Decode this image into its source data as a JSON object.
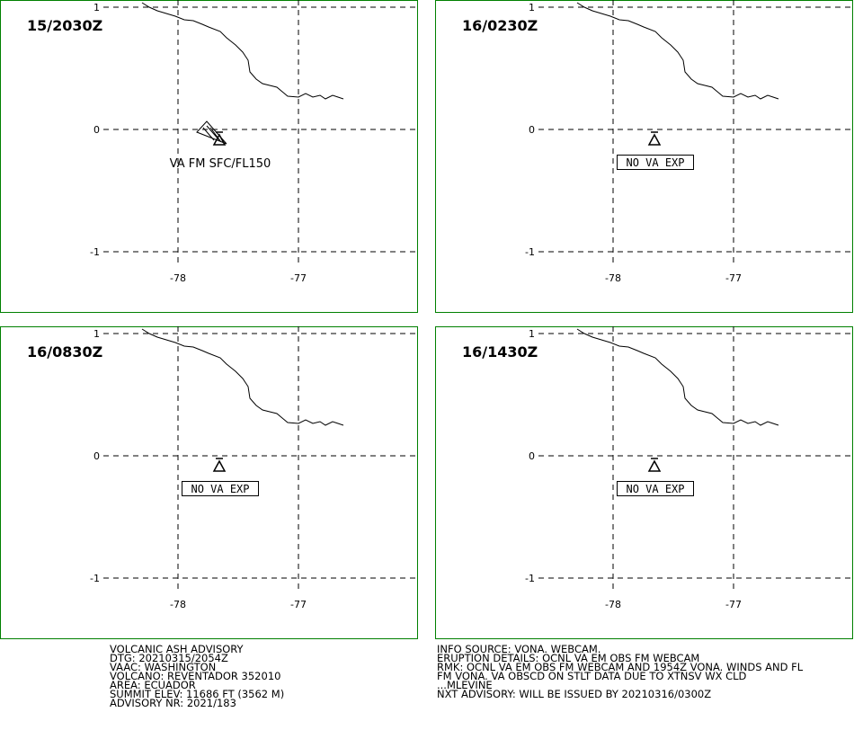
{
  "panels": [
    {
      "title": "15/2030Z",
      "lat_labels": [
        1,
        0,
        -1
      ],
      "lon_labels": [
        -78,
        -77
      ],
      "annotation": "VA FM SFC/FL150",
      "boxed": false
    },
    {
      "title": "16/0230Z",
      "lat_labels": [
        1,
        0,
        -1
      ],
      "lon_labels": [
        -78,
        -77
      ],
      "annotation": "NO VA EXP",
      "boxed": true
    },
    {
      "title": "16/0830Z",
      "lat_labels": [
        1,
        0,
        -1
      ],
      "lon_labels": [
        -78,
        -77
      ],
      "annotation": "NO VA EXP",
      "boxed": true
    },
    {
      "title": "16/1430Z",
      "lat_labels": [
        1,
        0,
        -1
      ],
      "lon_labels": [
        -78,
        -77
      ],
      "annotation": "NO VA EXP",
      "boxed": true
    }
  ],
  "advisory_left": [
    "VOLCANIC ASH ADVISORY",
    "DTG: 20210315/2054Z",
    "VAAC: WASHINGTON",
    "VOLCANO: REVENTADOR 352010",
    "AREA: ECUADOR",
    "SUMMIT ELEV: 11686 FT (3562 M)",
    "ADVISORY NR: 2021/183"
  ],
  "advisory_right": [
    "INFO SOURCE: VONA. WEBCAM.",
    "ERUPTION DETAILS: OCNL VA EM OBS FM WEBCAM",
    "RMK: OCNL VA EM OBS FM WEBCAM AND 1954Z VONA. WINDS AND FL",
    "FM VONA. VA OBSCD ON STLT DATA DUE TO XTNSV WX CLD",
    "...MLEVINE",
    "NXT ADVISORY: WILL BE ISSUED BY 20210316/0300Z"
  ]
}
